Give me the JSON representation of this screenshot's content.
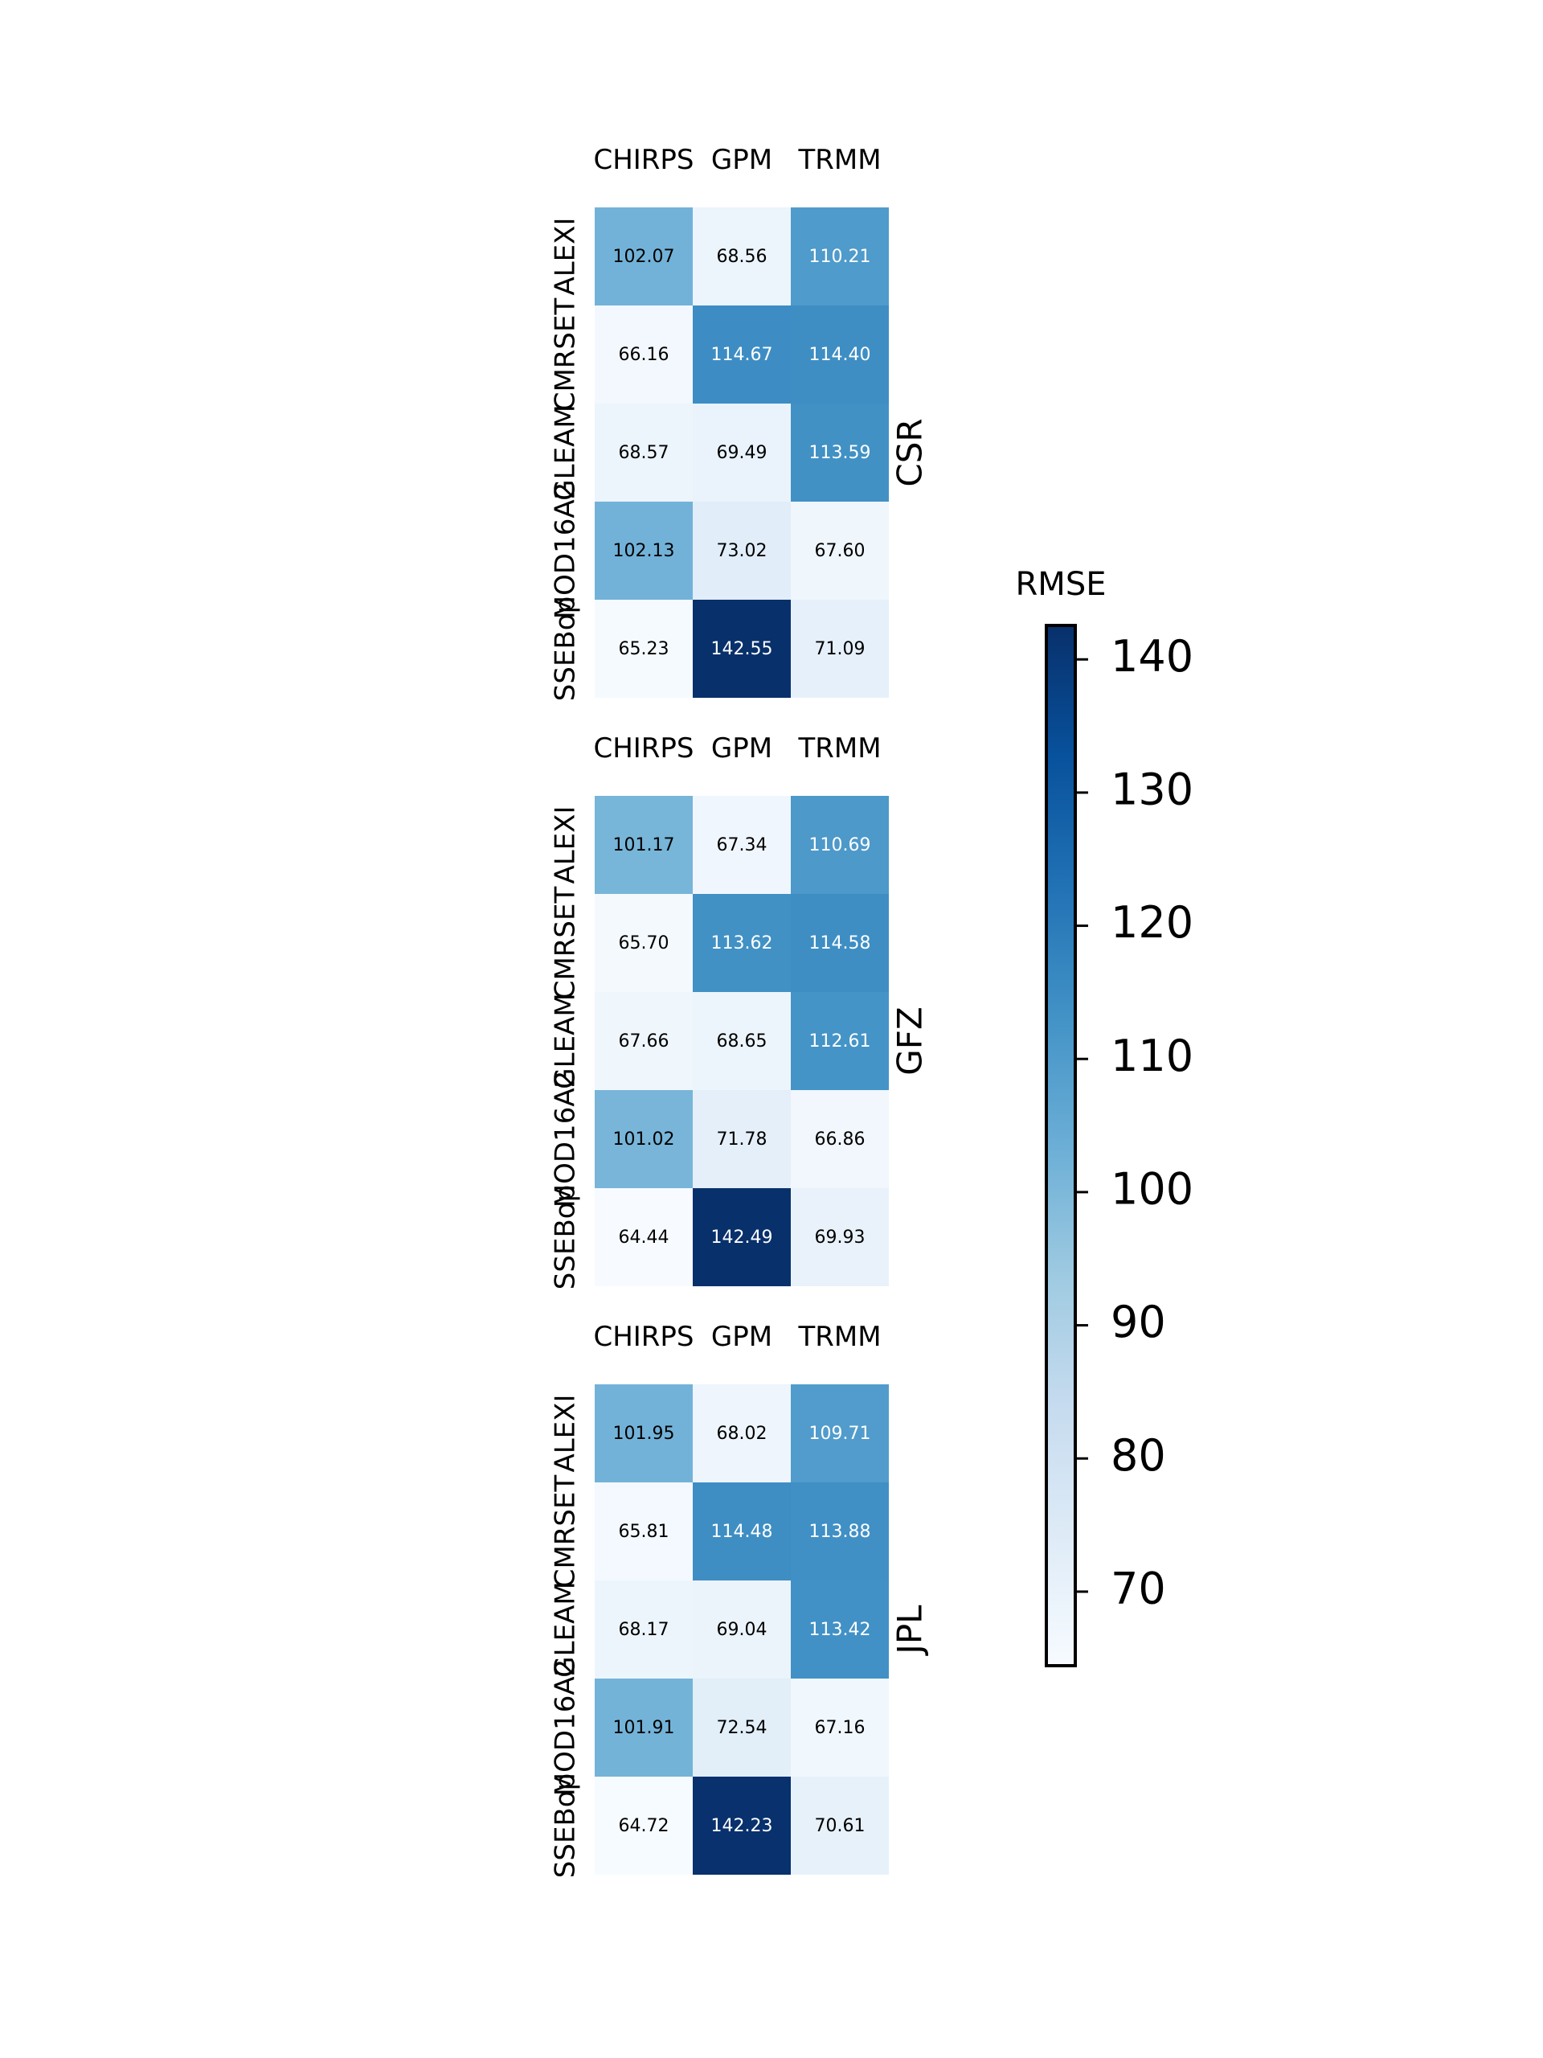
{
  "chart_data": {
    "type": "heatmap",
    "columns": [
      "CHIRPS",
      "GPM",
      "TRMM"
    ],
    "rows": [
      "ALEXI",
      "CMRSET",
      "GLEAM",
      "MOD16A2",
      "SSEBop"
    ],
    "panels": [
      {
        "name": "CSR",
        "values": [
          [
            102.07,
            68.56,
            110.21
          ],
          [
            66.16,
            114.67,
            114.4
          ],
          [
            68.57,
            69.49,
            113.59
          ],
          [
            102.13,
            73.02,
            67.6
          ],
          [
            65.23,
            142.55,
            71.09
          ]
        ]
      },
      {
        "name": "GFZ",
        "values": [
          [
            101.17,
            67.34,
            110.69
          ],
          [
            65.7,
            113.62,
            114.58
          ],
          [
            67.66,
            68.65,
            112.61
          ],
          [
            101.02,
            71.78,
            66.86
          ],
          [
            64.44,
            142.49,
            69.93
          ]
        ]
      },
      {
        "name": "JPL",
        "values": [
          [
            101.95,
            68.02,
            109.71
          ],
          [
            65.81,
            114.48,
            113.88
          ],
          [
            68.17,
            69.04,
            113.42
          ],
          [
            101.91,
            72.54,
            67.16
          ],
          [
            64.72,
            142.23,
            70.61
          ]
        ]
      }
    ],
    "colorbar": {
      "label": "RMSE",
      "range": [
        64.44,
        142.55
      ],
      "ticks": [
        70,
        80,
        90,
        100,
        110,
        120,
        130,
        140
      ],
      "colormap": "Blues"
    },
    "annotation_format": "2 decimals"
  }
}
